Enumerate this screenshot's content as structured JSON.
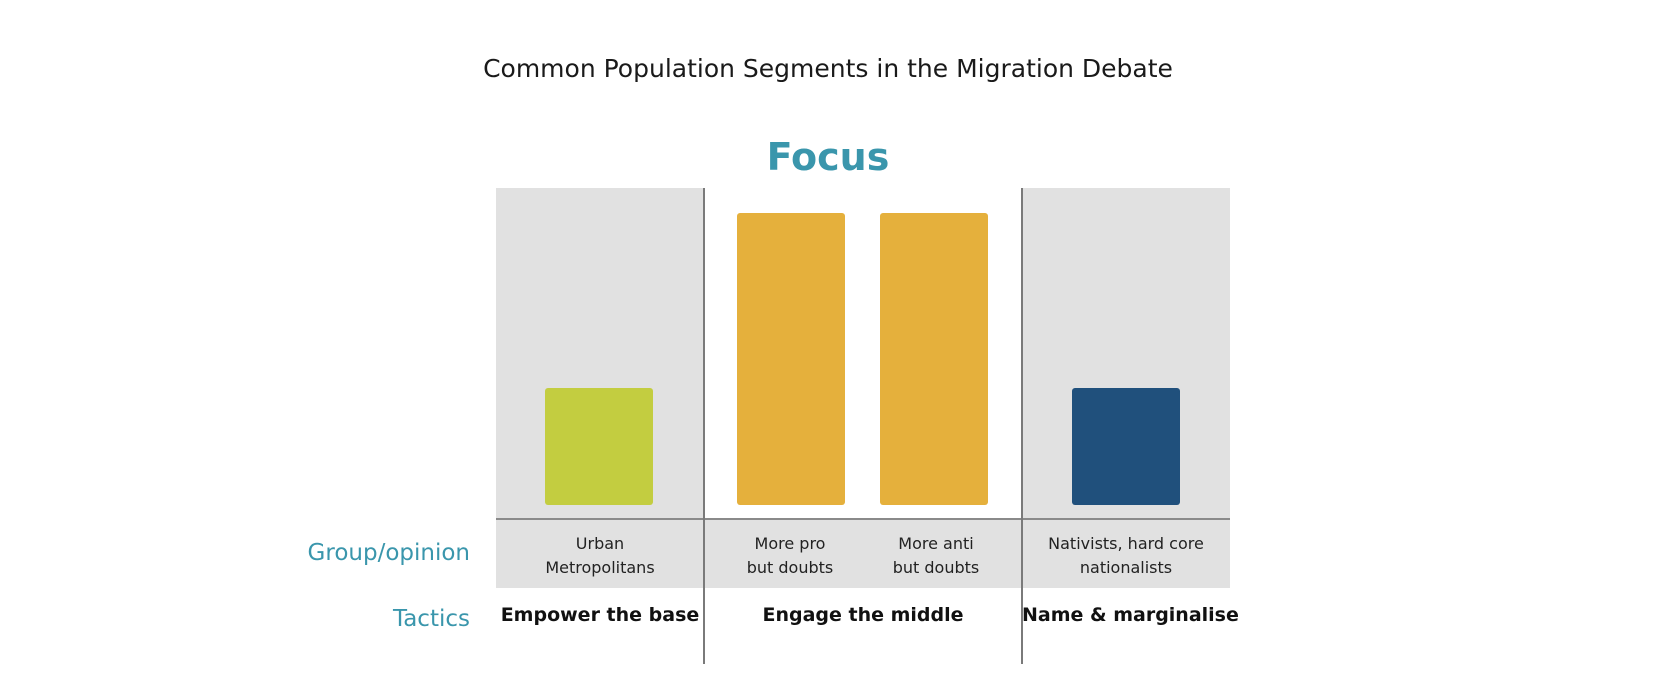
{
  "title": "Common Population Segments in the Migration Debate",
  "focus_label": "Focus",
  "row_labels": {
    "group_opinion": "Group/opinion",
    "tactics": "Tactics"
  },
  "segments": [
    {
      "label": "Urban\nMetropolitans",
      "color": "#c3cd40",
      "focus_level": 0.4
    },
    {
      "label": "More pro\nbut doubts",
      "color": "#e5b03c",
      "focus_level": 1.0
    },
    {
      "label": "More anti\nbut doubts",
      "color": "#e5b03c",
      "focus_level": 1.0
    },
    {
      "label": "Nativists, hard core\nnationalists",
      "color": "#20507c",
      "focus_level": 0.4
    }
  ],
  "tactics": [
    {
      "label": "Empower the base"
    },
    {
      "label": "Engage the middle"
    },
    {
      "label": "Name & marginalise"
    }
  ]
}
